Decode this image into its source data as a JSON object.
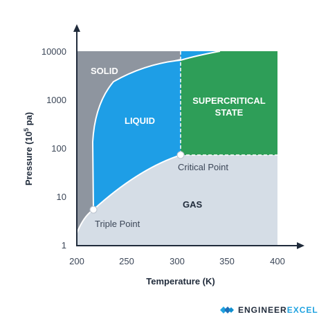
{
  "diagram": {
    "x_axis": {
      "title": "Temperature (K)",
      "ticks": [
        "200",
        "250",
        "300",
        "350",
        "400"
      ]
    },
    "y_axis": {
      "title_main": "Pressure (10",
      "title_sup": "5",
      "title_end": " pa)",
      "ticks": [
        "1",
        "10",
        "100",
        "1000",
        "10000"
      ]
    },
    "regions": {
      "solid": "SOLID",
      "liquid": "LIQUID",
      "supercritical_line1": "SUPERCRITICAL",
      "supercritical_line2": "STATE",
      "gas": "GAS"
    },
    "points": {
      "triple": "Triple Point",
      "critical": "Critical Point"
    },
    "colors": {
      "solid": "#8e959f",
      "liquid": "#1e9ee6",
      "supercritical": "#2e9e58",
      "gas": "#d5dde6",
      "axis": "#1f2a3a"
    }
  },
  "branding": {
    "word1": "ENGINEER",
    "word2": "EXCEL",
    "logo_icon": "engineerexcel-logo-icon"
  }
}
